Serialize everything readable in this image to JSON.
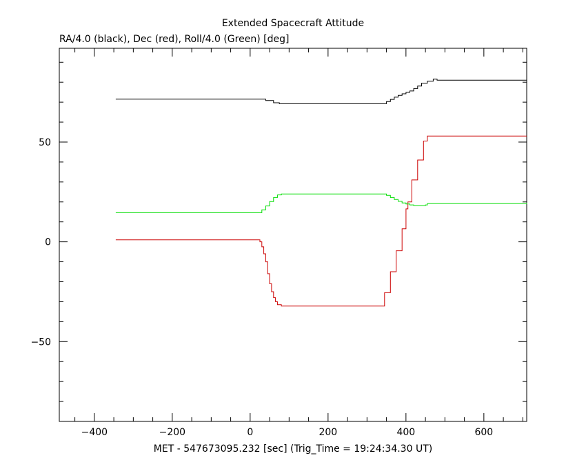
{
  "chart_data": {
    "type": "line",
    "title": "Extended Spacecraft Attitude",
    "subtitle": "RA/4.0 (black), Dec (red), Roll/4.0 (Green) [deg]",
    "xlabel": "MET - 547673095.232 [sec] (Trig_Time = 19:24:34.30 UT)",
    "ylabel": "",
    "xlim": [
      -490,
      710
    ],
    "ylim": [
      -90,
      97
    ],
    "x_ticks": [
      -400,
      -200,
      0,
      200,
      400,
      600
    ],
    "x_tick_labels": [
      "−400",
      "−200",
      "0",
      "200",
      "400",
      "600"
    ],
    "y_ticks": [
      -50,
      0,
      50
    ],
    "y_tick_labels": [
      "−50",
      "0",
      "50"
    ],
    "x_minor_step": 50,
    "y_minor_step": 10,
    "grid": false,
    "series": [
      {
        "color": "#000000",
        "points": [
          [
            -345,
            71.5
          ],
          [
            20,
            71.5
          ],
          [
            40,
            70.8
          ],
          [
            60,
            69.7
          ],
          [
            75,
            69.2
          ],
          [
            340,
            69.2
          ],
          [
            350,
            70.3
          ],
          [
            360,
            71.4
          ],
          [
            370,
            72.5
          ],
          [
            380,
            73.4
          ],
          [
            390,
            74.2
          ],
          [
            400,
            74.9
          ],
          [
            410,
            75.6
          ],
          [
            420,
            76.8
          ],
          [
            430,
            78.1
          ],
          [
            440,
            79.5
          ],
          [
            455,
            80.5
          ],
          [
            470,
            81.5
          ],
          [
            480,
            81.0
          ],
          [
            710,
            81.0
          ]
        ]
      },
      {
        "color": "#cc0000",
        "points": [
          [
            -345,
            1.0
          ],
          [
            15,
            1.0
          ],
          [
            25,
            0.0
          ],
          [
            30,
            -2.5
          ],
          [
            35,
            -6.0
          ],
          [
            40,
            -10.0
          ],
          [
            45,
            -16.0
          ],
          [
            50,
            -21.0
          ],
          [
            55,
            -25.0
          ],
          [
            60,
            -28.0
          ],
          [
            65,
            -30.0
          ],
          [
            70,
            -31.5
          ],
          [
            80,
            -32.2
          ],
          [
            330,
            -32.2
          ],
          [
            345,
            -31.5
          ],
          [
            345,
            -25.5
          ],
          [
            360,
            -25.5
          ],
          [
            360,
            -15.0
          ],
          [
            375,
            -15.0
          ],
          [
            375,
            -4.5
          ],
          [
            390,
            -4.5
          ],
          [
            390,
            6.5
          ],
          [
            400,
            6.5
          ],
          [
            400,
            16.5
          ],
          [
            405,
            16.5
          ],
          [
            405,
            20.0
          ],
          [
            415,
            20.0
          ],
          [
            415,
            31.0
          ],
          [
            430,
            31.0
          ],
          [
            430,
            41.0
          ],
          [
            445,
            41.0
          ],
          [
            445,
            50.5
          ],
          [
            455,
            50.5
          ],
          [
            455,
            53.0
          ],
          [
            710,
            53.0
          ]
        ]
      },
      {
        "color": "#00dd00",
        "points": [
          [
            -345,
            14.6
          ],
          [
            20,
            14.6
          ],
          [
            30,
            16.0
          ],
          [
            40,
            18.0
          ],
          [
            50,
            20.2
          ],
          [
            60,
            22.2
          ],
          [
            70,
            23.5
          ],
          [
            80,
            24.0
          ],
          [
            340,
            24.0
          ],
          [
            350,
            23.3
          ],
          [
            360,
            22.2
          ],
          [
            370,
            21.2
          ],
          [
            380,
            20.3
          ],
          [
            390,
            19.5
          ],
          [
            400,
            19.0
          ],
          [
            410,
            18.5
          ],
          [
            420,
            18.2
          ],
          [
            440,
            18.2
          ],
          [
            450,
            18.5
          ],
          [
            455,
            19.2
          ],
          [
            710,
            19.6
          ]
        ]
      }
    ]
  }
}
